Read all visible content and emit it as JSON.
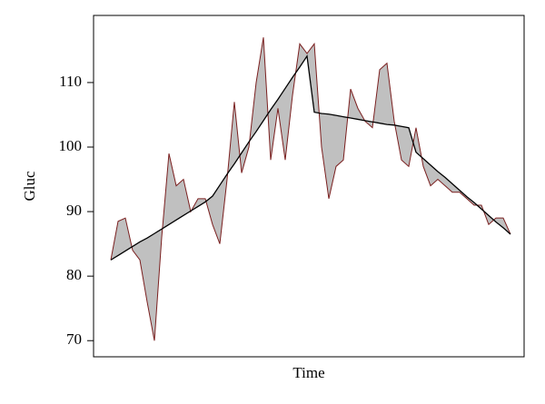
{
  "chart_data": {
    "type": "line",
    "xlabel": "Time",
    "ylabel": "Gluc",
    "ylim": [
      67.5,
      120.4
    ],
    "yticks": [
      70,
      80,
      90,
      100,
      110
    ],
    "fill_between": true,
    "fill_color": "#c0c0c0",
    "series": [
      {
        "color": "#7a1f1f",
        "values": [
          82.5,
          88.5,
          89,
          84,
          82.5,
          76,
          70,
          86,
          99,
          94,
          95,
          90,
          92,
          92,
          88,
          85,
          95,
          107,
          96,
          100,
          110,
          117,
          98,
          106,
          98,
          108,
          116,
          114.5,
          116,
          100,
          92,
          97,
          98,
          109,
          106,
          104,
          103,
          112,
          113,
          104,
          98,
          97,
          103,
          97,
          94,
          95,
          94,
          93,
          93,
          92,
          91,
          91,
          88,
          89,
          89,
          86.5
        ]
      },
      {
        "color": "#000000",
        "values": [
          82.5,
          83.2,
          83.9,
          84.6,
          85.3,
          85.9,
          86.6,
          87.3,
          88.0,
          88.7,
          89.4,
          90.1,
          90.8,
          91.5,
          92.4,
          94.1,
          95.8,
          97.4,
          99.1,
          100.8,
          102.4,
          104.1,
          105.8,
          107.4,
          109.1,
          110.8,
          112.4,
          114.1,
          105.4,
          105.2,
          105.1,
          104.9,
          104.7,
          104.5,
          104.3,
          104.1,
          103.9,
          103.7,
          103.5,
          103.4,
          103.2,
          103.0,
          99.2,
          98.2,
          97.2,
          96.2,
          95.3,
          94.3,
          93.3,
          92.3,
          91.4,
          90.4,
          89.4,
          88.4,
          87.5,
          86.5
        ]
      }
    ]
  }
}
